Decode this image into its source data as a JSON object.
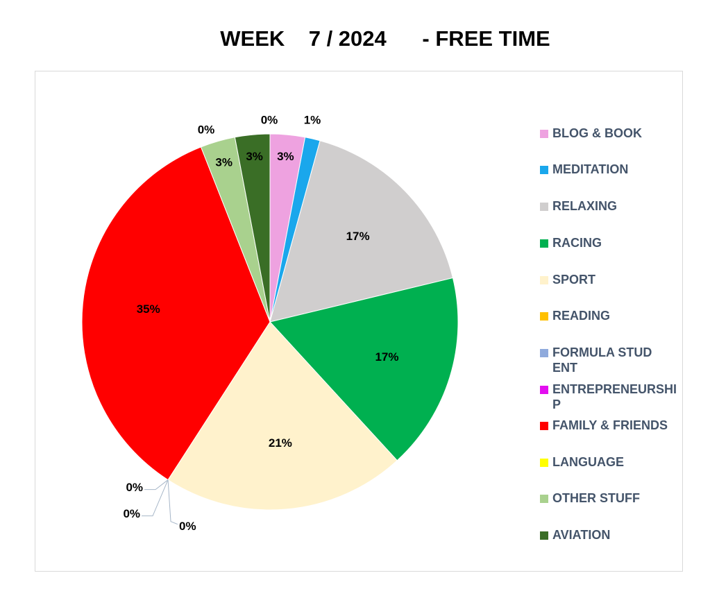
{
  "title": "WEEK    7 / 2024      - FREE TIME",
  "chart_data": {
    "type": "pie",
    "title": "WEEK    7 / 2024      - FREE TIME",
    "legend_position": "right",
    "slices": [
      {
        "name": "BLOG & BOOK",
        "value": 3,
        "label": "3%",
        "color": "#eea2e0"
      },
      {
        "name": "MEDITATION",
        "value": 1.3,
        "label": "1%",
        "color": "#1aa7ec"
      },
      {
        "name": "RELAXING",
        "value": 17,
        "label": "17%",
        "color": "#d0cece"
      },
      {
        "name": "RACING",
        "value": 17,
        "label": "17%",
        "color": "#00b050"
      },
      {
        "name": "SPORT",
        "value": 21,
        "label": "21%",
        "color": "#fff2cc"
      },
      {
        "name": "READING",
        "value": 0,
        "label": "0%",
        "color": "#ffc000"
      },
      {
        "name": "FORMULA STUDENT",
        "value": 0,
        "label": "0%",
        "color": "#8faadc"
      },
      {
        "name": "ENTREPRENEURSHIP",
        "value": 0,
        "label": "0%",
        "color": "#e30ef0"
      },
      {
        "name": "FAMILY & FRIENDS",
        "value": 35,
        "label": "35%",
        "color": "#ff0000"
      },
      {
        "name": "LANGUAGE",
        "value": 0,
        "label": "0%",
        "color": "#ffff00"
      },
      {
        "name": "OTHER STUFF",
        "value": 3,
        "label": "3%",
        "color": "#a9d18e"
      },
      {
        "name": "AVIATION",
        "value": 3,
        "label": "3%",
        "color": "#3a6e26"
      }
    ],
    "top_zero_label": "0%"
  },
  "legend": [
    {
      "label": "BLOG & BOOK",
      "color": "#eea2e0"
    },
    {
      "label": "MEDITATION",
      "color": "#1aa7ec"
    },
    {
      "label": "RELAXING",
      "color": "#d0cece"
    },
    {
      "label": "RACING",
      "color": "#00b050"
    },
    {
      "label": "SPORT",
      "color": "#fff2cc"
    },
    {
      "label": "READING",
      "color": "#ffc000"
    },
    {
      "label": "FORMULA STUDENT",
      "color": "#8faadc"
    },
    {
      "label": "ENTREPRENEURSHIP",
      "color": "#e30ef0"
    },
    {
      "label": "FAMILY & FRIENDS",
      "color": "#ff0000"
    },
    {
      "label": "LANGUAGE",
      "color": "#ffff00"
    },
    {
      "label": "OTHER STUFF",
      "color": "#a9d18e"
    },
    {
      "label": "AVIATION",
      "color": "#3a6e26"
    }
  ]
}
